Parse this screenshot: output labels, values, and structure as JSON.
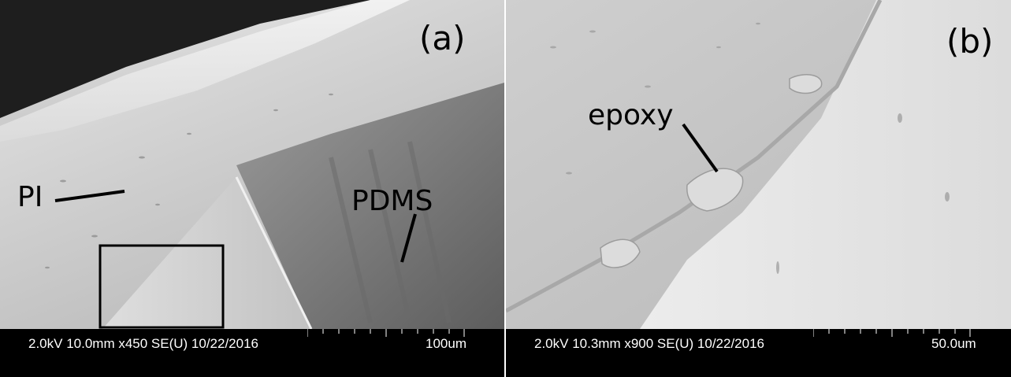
{
  "panel_a": {
    "letter": "(a)",
    "annotations": {
      "pi": "PI",
      "pdms": "PDMS"
    },
    "info": "2.0kV 10.0mm x450 SE(U) 10/22/2016",
    "scale": "100um"
  },
  "panel_b": {
    "letter": "(b)",
    "annotations": {
      "epoxy": "epoxy"
    },
    "info": "2.0kV 10.3mm x900 SE(U) 10/22/2016",
    "scale": "50.0um"
  }
}
